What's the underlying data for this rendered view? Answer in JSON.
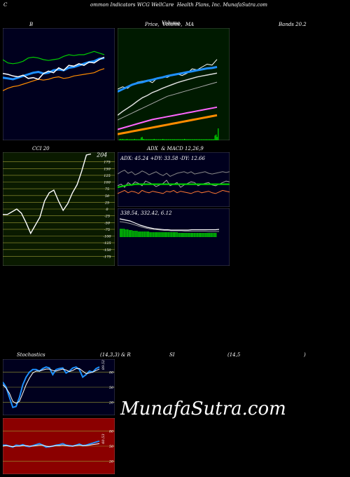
{
  "header": {
    "c": "C",
    "title": "ommon Indicators WCG WellCare  Health Plans, Inc. MunafaSutra.com"
  },
  "titles": {
    "b": "B",
    "price": "Price,  Volume,  MA",
    "price_overlay": "Volume",
    "bands": "Bands 20.2",
    "cci": "CCI 20",
    "adx_macd": "ADX  & MACD 12,26,9",
    "stoch_a": "Stochastics",
    "stoch_b": "(14,3,3) & R",
    "stoch_c": "SI",
    "stoch_d": "(14,5",
    "stoch_e": ")"
  },
  "brand": "MunafaSutra.com",
  "colors": {
    "navy": "#00001e",
    "green_bg": "#001a00",
    "cci_bg": "#0a1a00",
    "red_bg": "#8b0000",
    "blue_line": "#1e90ff",
    "green_line": "#00cc00",
    "orange_line": "#ff8c00",
    "white_line": "#ffffff"
  },
  "chart_data": [
    {
      "name": "bollinger",
      "type": "line",
      "series": [
        {
          "values": [
            128,
            127,
            126,
            128,
            130,
            132,
            134,
            135,
            133,
            134,
            137,
            138,
            137,
            140,
            141,
            143,
            145,
            147,
            148,
            151,
            152
          ]
        },
        {
          "values": [
            150,
            146,
            145,
            146,
            148,
            152,
            153,
            152,
            150,
            149,
            150,
            151,
            154,
            156,
            155,
            156,
            156,
            158,
            160,
            158,
            156
          ]
        },
        {
          "values": [
            112,
            115,
            117,
            118,
            120,
            122,
            124,
            126,
            125,
            126,
            128,
            129,
            127,
            128,
            130,
            131,
            132,
            133,
            134,
            137,
            139
          ]
        },
        {
          "values": [
            133,
            132,
            130,
            129,
            131,
            127,
            128,
            126,
            133,
            136,
            134,
            140,
            137,
            143,
            142,
            145,
            143,
            147,
            146,
            150,
            153
          ]
        }
      ]
    },
    {
      "name": "price-volume-ma",
      "type": "line",
      "series": [
        {
          "values": [
            155,
            160,
            157,
            165,
            170,
            172,
            174,
            169,
            179,
            181,
            180,
            185,
            187,
            184,
            189,
            198,
            196,
            202,
            208,
            206,
            218
          ]
        },
        {
          "values": [
            150,
            155,
            160,
            165,
            168,
            170,
            173,
            175,
            178,
            180,
            183,
            185,
            187,
            189,
            191,
            193,
            195,
            197,
            199,
            200,
            202
          ]
        },
        {
          "values": [
            100,
            108,
            115,
            122,
            130,
            137,
            142,
            148,
            152,
            157,
            161,
            165,
            169,
            172,
            175,
            178,
            181,
            183,
            185,
            187,
            189
          ]
        },
        {
          "values": [
            90,
            95,
            100,
            105,
            110,
            115,
            120,
            125,
            130,
            135,
            140,
            143,
            146,
            149,
            152,
            155,
            158,
            161,
            164,
            167,
            170
          ]
        },
        {
          "values": [
            70,
            73,
            76,
            79,
            82,
            85,
            88,
            91,
            93,
            95,
            97,
            99,
            101,
            103,
            105,
            107,
            109,
            111,
            113,
            115,
            117
          ]
        },
        {
          "values": [
            60,
            62,
            64,
            66,
            68,
            70,
            72,
            74,
            76,
            78,
            80,
            82,
            84,
            86,
            88,
            90,
            92,
            94,
            96,
            98,
            100
          ]
        }
      ],
      "volume": [
        2,
        3,
        2,
        3,
        2,
        2,
        2,
        3,
        2,
        2,
        2,
        2,
        2,
        2,
        3,
        2,
        2,
        2,
        2,
        2,
        6,
        7,
        3,
        2,
        2,
        2,
        2,
        2,
        2,
        2,
        2,
        2,
        3,
        2,
        2,
        2,
        2,
        2,
        2,
        2,
        3,
        2,
        2,
        2,
        2,
        2,
        2,
        2,
        2,
        2,
        2,
        2,
        2,
        2,
        2,
        2,
        2,
        2,
        2,
        2,
        3,
        2,
        2,
        2,
        2,
        2,
        2,
        2,
        2,
        2,
        2,
        2,
        2,
        2,
        2,
        2,
        2,
        2,
        2,
        2,
        2,
        2,
        2,
        2,
        2,
        2,
        2,
        2,
        10,
        12,
        7,
        25
      ]
    },
    {
      "name": "cci",
      "type": "line",
      "ylim": [
        -200,
        200
      ],
      "ticks": [
        175,
        150,
        125,
        100,
        75,
        50,
        25,
        0,
        -25,
        -50,
        -75,
        -100,
        -125,
        -150,
        -175
      ],
      "value_label": "204",
      "values": [
        -20,
        -20,
        -10,
        0,
        -15,
        -50,
        -90,
        -60,
        -30,
        30,
        60,
        70,
        30,
        -5,
        20,
        60,
        90,
        140,
        200,
        204
      ]
    },
    {
      "name": "adx",
      "type": "line",
      "readout": "ADX: 45.24  +DY: 33.58  -DY: 12.66",
      "series": [
        {
          "values": [
            35,
            38,
            40,
            36,
            38,
            34,
            36,
            39,
            37,
            34,
            36,
            38,
            35,
            33,
            36,
            32,
            34,
            36,
            37,
            38,
            36,
            38,
            35,
            36,
            37,
            38,
            36,
            35,
            36,
            37,
            38,
            37,
            38
          ]
        },
        {
          "values": [
            20,
            22,
            18,
            24,
            21,
            25,
            23,
            20,
            26,
            24,
            22,
            19,
            21,
            23,
            27,
            20,
            22,
            24,
            18,
            21,
            23,
            25,
            24,
            20,
            22,
            23,
            24,
            21,
            20,
            22,
            24,
            26,
            25
          ]
        },
        {
          "values": [
            10,
            12,
            14,
            11,
            13,
            12,
            10,
            14,
            12,
            11,
            13,
            12,
            11,
            10,
            13,
            12,
            14,
            11,
            13,
            12,
            11,
            10,
            12,
            13,
            11,
            12,
            13,
            11,
            10,
            12,
            14,
            13,
            12
          ]
        },
        {
          "values": [
            18,
            19,
            20,
            21,
            21,
            22,
            22,
            22,
            22,
            22,
            22,
            22,
            22,
            22,
            22,
            22,
            22,
            22,
            22,
            22,
            22,
            22,
            22,
            22,
            22,
            22,
            22,
            22,
            22,
            22,
            22,
            22,
            22
          ]
        }
      ]
    },
    {
      "name": "macd",
      "type": "bar",
      "readout": "338.54,  332.42,  6.12",
      "macd_line": [
        370,
        368,
        366,
        364,
        360,
        356,
        352,
        349,
        346,
        344,
        342,
        341,
        340,
        339,
        339,
        338,
        338,
        338,
        338,
        338,
        338,
        339,
        339,
        339,
        339,
        339,
        339,
        339,
        339,
        340
      ],
      "signal_line": [
        362,
        361,
        359,
        357,
        354,
        351,
        348,
        345,
        343,
        341,
        340,
        339,
        338,
        337,
        337,
        336,
        336,
        336,
        336,
        335,
        335,
        335,
        335,
        335,
        335,
        335,
        334,
        334,
        334,
        334
      ],
      "histogram": [
        12,
        12,
        12,
        12,
        11,
        11,
        11,
        10,
        10,
        10,
        9,
        9,
        9,
        9,
        8,
        8,
        8,
        8,
        8,
        8,
        8,
        8,
        8,
        7,
        7,
        7,
        7,
        7,
        7,
        7,
        7,
        7,
        7,
        7,
        7,
        7,
        7,
        7,
        7,
        7,
        7,
        7,
        7,
        7,
        7,
        6,
        6,
        6,
        6,
        6,
        6,
        6,
        6,
        6,
        6,
        6,
        6,
        6,
        6,
        6,
        6,
        6,
        6,
        6,
        6,
        6,
        6,
        6,
        6,
        6,
        6,
        6,
        6,
        6,
        6
      ]
    },
    {
      "name": "stochastics",
      "type": "line",
      "ylim": [
        0,
        100
      ],
      "ticks": [
        80,
        50,
        20
      ],
      "value_label": "89.52",
      "series": [
        {
          "values": [
            60,
            50,
            30,
            10,
            12,
            30,
            55,
            70,
            80,
            85,
            85,
            82,
            87,
            90,
            88,
            75,
            85,
            87,
            88,
            78,
            82,
            88,
            90,
            85,
            70,
            75,
            82,
            80,
            87,
            90
          ]
        },
        {
          "values": [
            55,
            48,
            38,
            22,
            18,
            22,
            38,
            55,
            68,
            78,
            82,
            82,
            84,
            86,
            86,
            83,
            82,
            84,
            86,
            84,
            81,
            83,
            87,
            87,
            82,
            77,
            78,
            80,
            83,
            86
          ]
        }
      ]
    },
    {
      "name": "rsi",
      "type": "line",
      "ylim": [
        0,
        100
      ],
      "ticks": [
        80,
        50,
        20
      ],
      "value_label": "60.53",
      "series": [
        {
          "values": [
            52,
            52,
            50,
            48,
            52,
            51,
            53,
            50,
            49,
            51,
            53,
            55,
            52,
            48,
            49,
            50,
            52,
            53,
            55,
            52,
            51,
            50,
            52,
            54,
            51,
            52,
            54,
            56,
            58,
            60
          ]
        },
        {
          "values": [
            50,
            51,
            50,
            49,
            50,
            50,
            51,
            51,
            50,
            50,
            51,
            52,
            52,
            50,
            49,
            50,
            51,
            51,
            52,
            51,
            50,
            50,
            51,
            52,
            51,
            51,
            52,
            53,
            54,
            55
          ]
        }
      ]
    }
  ]
}
